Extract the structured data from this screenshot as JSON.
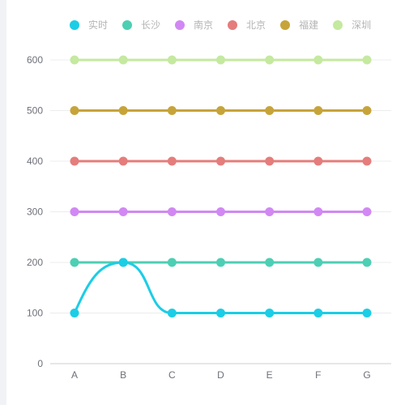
{
  "chart_data": {
    "type": "line",
    "categories": [
      "A",
      "B",
      "C",
      "D",
      "E",
      "F",
      "G"
    ],
    "ylim": [
      0,
      600
    ],
    "yticks": [
      0,
      100,
      200,
      300,
      400,
      500,
      600
    ],
    "grid": true,
    "legend_position": "top",
    "series": [
      {
        "name": "实时",
        "color": "#1ccde6",
        "smooth": true,
        "values": [
          100,
          200,
          100,
          100,
          100,
          100,
          100
        ]
      },
      {
        "name": "长沙",
        "color": "#4dcfb3",
        "values": [
          200,
          200,
          200,
          200,
          200,
          200,
          200
        ]
      },
      {
        "name": "南京",
        "color": "#d188f3",
        "values": [
          300,
          300,
          300,
          300,
          300,
          300,
          300
        ]
      },
      {
        "name": "北京",
        "color": "#e47d7b",
        "values": [
          400,
          400,
          400,
          400,
          400,
          400,
          400
        ]
      },
      {
        "name": "福建",
        "color": "#c7a43a",
        "values": [
          500,
          500,
          500,
          500,
          500,
          500,
          500
        ]
      },
      {
        "name": "深圳",
        "color": "#c4e99f",
        "values": [
          600,
          600,
          600,
          600,
          600,
          600,
          600
        ]
      }
    ]
  }
}
